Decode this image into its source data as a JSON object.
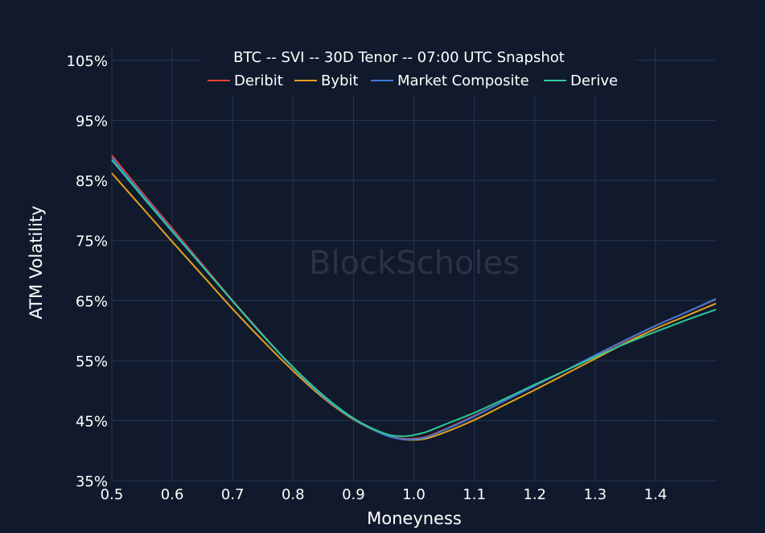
{
  "chart_data": {
    "type": "line",
    "title": "BTC -- SVI -- 30D Tenor -- 07:00 UTC Snapshot",
    "xlabel": "Moneyness",
    "ylabel": "ATM Volatility",
    "watermark": "BlockScholes",
    "xlim": [
      0.5,
      1.5
    ],
    "ylim": [
      35,
      107
    ],
    "x_ticks": [
      0.5,
      0.6,
      0.7,
      0.8,
      0.9,
      1.0,
      1.1,
      1.2,
      1.3,
      1.4
    ],
    "x_tick_labels": [
      "0.5",
      "0.6",
      "0.7",
      "0.8",
      "0.9",
      "1.0",
      "1.1",
      "1.2",
      "1.3",
      "1.4"
    ],
    "y_ticks": [
      35,
      45,
      55,
      65,
      75,
      85,
      95,
      105
    ],
    "y_tick_labels": [
      "35%",
      "45%",
      "55%",
      "65%",
      "75%",
      "85%",
      "95%",
      "105%"
    ],
    "grid": true,
    "legend_position": "top-center",
    "series": [
      {
        "name": "Deribit",
        "color": "#e8402f",
        "x": [
          0.5,
          0.55,
          0.6,
          0.65,
          0.7,
          0.75,
          0.8,
          0.85,
          0.9,
          0.95,
          0.98,
          1.0,
          1.02,
          1.05,
          1.1,
          1.15,
          1.2,
          1.25,
          1.3,
          1.35,
          1.4,
          1.45,
          1.5
        ],
        "values": [
          89.2,
          83.0,
          77.0,
          71.0,
          65.0,
          59.3,
          53.8,
          49.0,
          45.3,
          42.7,
          42.0,
          42.0,
          42.3,
          43.5,
          45.8,
          48.3,
          50.8,
          53.3,
          55.8,
          58.3,
          60.8,
          63.0,
          65.2
        ]
      },
      {
        "name": "Bybit",
        "color": "#e3a11f",
        "x": [
          0.5,
          0.55,
          0.6,
          0.65,
          0.7,
          0.75,
          0.8,
          0.85,
          0.9,
          0.95,
          0.98,
          1.0,
          1.02,
          1.05,
          1.1,
          1.15,
          1.2,
          1.25,
          1.3,
          1.35,
          1.4,
          1.45,
          1.5
        ],
        "values": [
          86.2,
          80.5,
          74.8,
          69.2,
          63.6,
          58.3,
          53.3,
          48.8,
          45.2,
          42.7,
          41.9,
          41.8,
          42.0,
          43.0,
          45.1,
          47.6,
          50.1,
          52.7,
          55.3,
          57.9,
          60.3,
          62.4,
          64.5
        ]
      },
      {
        "name": "Market Composite",
        "color": "#3a78d8",
        "x": [
          0.5,
          0.55,
          0.6,
          0.65,
          0.7,
          0.75,
          0.8,
          0.85,
          0.9,
          0.95,
          0.98,
          1.0,
          1.02,
          1.05,
          1.1,
          1.15,
          1.2,
          1.25,
          1.3,
          1.35,
          1.4,
          1.45,
          1.5
        ],
        "values": [
          88.8,
          82.7,
          76.7,
          70.8,
          64.9,
          59.2,
          53.8,
          49.0,
          45.3,
          42.7,
          41.9,
          41.9,
          42.2,
          43.4,
          45.7,
          48.3,
          50.8,
          53.3,
          55.9,
          58.4,
          60.8,
          63.0,
          65.3
        ]
      },
      {
        "name": "Derive",
        "color": "#2ec99a",
        "x": [
          0.5,
          0.55,
          0.6,
          0.65,
          0.7,
          0.75,
          0.8,
          0.85,
          0.9,
          0.95,
          0.98,
          1.0,
          1.02,
          1.05,
          1.1,
          1.15,
          1.2,
          1.25,
          1.3,
          1.35,
          1.4,
          1.45,
          1.5
        ],
        "values": [
          88.4,
          82.4,
          76.5,
          70.7,
          64.9,
          59.2,
          53.9,
          49.2,
          45.4,
          42.9,
          42.4,
          42.6,
          43.1,
          44.3,
          46.3,
          48.6,
          51.0,
          53.3,
          55.6,
          57.8,
          59.8,
          61.7,
          63.5
        ]
      }
    ]
  }
}
